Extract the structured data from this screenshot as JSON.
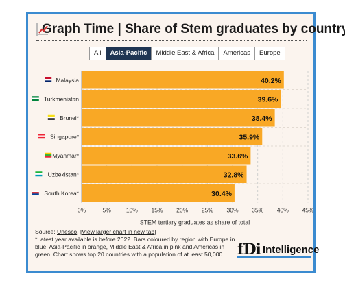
{
  "header": {
    "title": "Graph Time | Share of Stem graduates by country",
    "title_icon": "chart-increasing-icon"
  },
  "tabs": [
    {
      "label": "All",
      "active": false
    },
    {
      "label": "Asia-Pacific",
      "active": true
    },
    {
      "label": "Middle East & Africa",
      "active": false
    },
    {
      "label": "Americas",
      "active": false
    },
    {
      "label": "Europe",
      "active": false
    }
  ],
  "chart_data": {
    "type": "bar",
    "orientation": "horizontal",
    "categories": [
      "Malaysia",
      "Turkmenistan",
      "Brunei*",
      "Singapore*",
      "Myanmar*",
      "Uzbekistan*",
      "South Korea*"
    ],
    "flags": [
      "flag-malaysia-icon",
      "flag-turkmenistan-icon",
      "flag-brunei-icon",
      "flag-singapore-icon",
      "flag-myanmar-icon",
      "flag-uzbekistan-icon",
      "flag-south-korea-icon"
    ],
    "values": [
      40.2,
      39.6,
      38.4,
      35.9,
      33.6,
      32.8,
      30.4
    ],
    "data_labels": [
      "40.2%",
      "39.6%",
      "38.4%",
      "35.9%",
      "33.6%",
      "32.8%",
      "30.4%"
    ],
    "xlim": [
      0,
      45
    ],
    "xticks": [
      "0%",
      "5%",
      "10%",
      "15%",
      "20%",
      "25%",
      "30%",
      "35%",
      "40%",
      "45%"
    ],
    "xlabel": "STEM tertiary graduates as share of total",
    "bar_color": "#f9a825",
    "grid": "vertical dashed"
  },
  "footer": {
    "source_prefix": "Source: ",
    "source_link": "Unesco",
    "separator": ", ",
    "chart_link": "View larger chart in new tab",
    "note": "*Latest year available is before 2022. Bars coloured by region with Europe in blue, Asia-Pacific in orange, Middle East & Africa in pink and Americas in green. Chart shows top 20 countries with a population of at least 50,000."
  },
  "logo": {
    "mark": "fDi",
    "text": "Intelligence"
  },
  "colors": {
    "frame": "#3b8bd0",
    "background": "#fbf4ee",
    "active_tab": "#1f3553"
  }
}
